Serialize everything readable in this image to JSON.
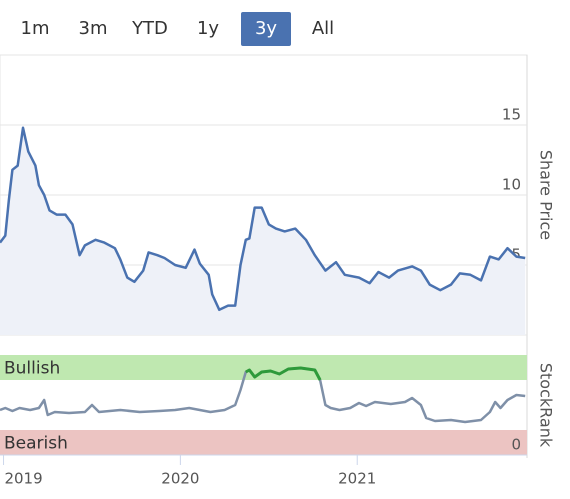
{
  "range_selector": {
    "buttons": [
      "1m",
      "3m",
      "YTD",
      "1y",
      "3y",
      "All"
    ],
    "selected": 4
  },
  "chart_data": [
    {
      "type": "line",
      "y_label": "Share Price",
      "color": "#4a72b0",
      "fill": "#eef1f8",
      "x": [
        2018.98,
        2019.01,
        2019.03,
        2019.05,
        2019.08,
        2019.11,
        2019.14,
        2019.18,
        2019.2,
        2019.23,
        2019.26,
        2019.3,
        2019.35,
        2019.39,
        2019.43,
        2019.46,
        2019.52,
        2019.57,
        2019.63,
        2019.66,
        2019.7,
        2019.74,
        2019.79,
        2019.82,
        2019.87,
        2019.91,
        2019.97,
        2020.03,
        2020.08,
        2020.11,
        2020.16,
        2020.18,
        2020.22,
        2020.27,
        2020.31,
        2020.34,
        2020.37,
        2020.39,
        2020.42,
        2020.46,
        2020.5,
        2020.54,
        2020.59,
        2020.65,
        2020.71,
        2020.76,
        2020.82,
        2020.88,
        2020.93,
        2021.01,
        2021.07,
        2021.12,
        2021.18,
        2021.23,
        2021.31,
        2021.36,
        2021.41,
        2021.47,
        2021.53,
        2021.58,
        2021.64,
        2021.7,
        2021.75,
        2021.8,
        2021.85,
        2021.9,
        2021.95
      ],
      "values": [
        6.6,
        7.1,
        9.6,
        11.8,
        12.1,
        14.8,
        13.1,
        12.1,
        10.7,
        10,
        8.9,
        8.6,
        8.6,
        7.9,
        5.7,
        6.4,
        6.8,
        6.6,
        6.2,
        5.4,
        4.1,
        3.8,
        4.6,
        5.9,
        5.7,
        5.5,
        5.0,
        4.8,
        6.1,
        5.1,
        4.3,
        2.9,
        1.8,
        2.1,
        2.1,
        5.0,
        6.8,
        6.9,
        9.1,
        9.1,
        7.9,
        7.6,
        7.4,
        7.6,
        6.8,
        5.7,
        4.6,
        5.2,
        4.3,
        4.1,
        3.7,
        4.5,
        4.1,
        4.6,
        4.9,
        4.6,
        3.6,
        3.2,
        3.6,
        4.4,
        4.3,
        3.9,
        5.6,
        5.4,
        6.2,
        5.6,
        5.5
      ],
      "xlim": [
        2018.98,
        2021.96
      ],
      "xticks": [
        2019,
        2020,
        2021
      ],
      "ylim": [
        0,
        20
      ],
      "yticks": [
        0,
        5,
        10,
        15
      ],
      "grid": true
    },
    {
      "type": "line",
      "y_label": "StockRank",
      "color": "#7f90a8",
      "highlight_color": "#2e9a3a",
      "x": [
        2018.98,
        2019.01,
        2019.05,
        2019.09,
        2019.15,
        2019.2,
        2019.23,
        2019.25,
        2019.29,
        2019.37,
        2019.46,
        2019.5,
        2019.54,
        2019.66,
        2019.77,
        2019.88,
        2019.97,
        2020.05,
        2020.11,
        2020.17,
        2020.25,
        2020.31,
        2020.34,
        2020.37,
        2020.39,
        2020.42,
        2020.46,
        2020.51,
        2020.56,
        2020.61,
        2020.68,
        2020.76,
        2020.79,
        2020.82,
        2020.85,
        2020.9,
        2020.96,
        2021.01,
        2021.05,
        2021.1,
        2021.19,
        2021.27,
        2021.31,
        2021.36,
        2021.39,
        2021.44,
        2021.53,
        2021.61,
        2021.7,
        2021.75,
        2021.78,
        2021.81,
        2021.85,
        2021.9,
        2021.95
      ],
      "values": [
        45,
        47,
        44,
        47,
        45,
        47,
        55,
        40,
        43,
        42,
        43,
        50,
        43,
        45,
        43,
        44,
        45,
        47,
        45,
        43,
        45,
        50,
        65,
        83,
        85,
        78,
        83,
        84,
        81,
        86,
        87,
        85,
        75,
        50,
        47,
        45,
        47,
        52,
        49,
        53,
        51,
        53,
        57,
        50,
        37,
        34,
        35,
        33,
        35,
        43,
        53,
        47,
        55,
        60,
        59
      ],
      "ylim": [
        0,
        100
      ],
      "yticks": [
        0
      ],
      "bands": [
        {
          "label": "Bullish",
          "range": [
            75,
            100
          ],
          "color": "#bfe8b0"
        },
        {
          "label": "Bearish",
          "range": [
            0,
            25
          ],
          "color": "#ecc4c2"
        }
      ]
    }
  ]
}
